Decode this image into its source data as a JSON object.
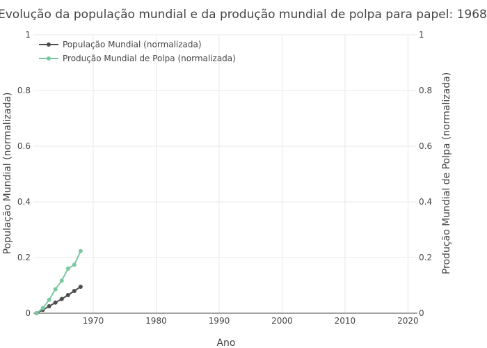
{
  "chart_data": {
    "type": "line",
    "title": "Evolução da população mundial e da produção mundial de polpa para papel: 1968",
    "xlabel": "Ano",
    "ylabel_left": "População Mundial (normalizada)",
    "ylabel_right": "Produção Mundial de Polpa (normalizada)",
    "xlim": [
      1960.5,
      2021.5
    ],
    "ylim": [
      0,
      1
    ],
    "x_ticks": [
      1970,
      1980,
      1990,
      2000,
      2010,
      2020
    ],
    "y_ticks": [
      0,
      0.2,
      0.4,
      0.6,
      0.8,
      1
    ],
    "y_tick_labels": [
      "0",
      "0.2",
      "0.4",
      "0.6",
      "0.8",
      "1"
    ],
    "grid": true,
    "legend_position": "top-left",
    "series": [
      {
        "name": "População Mundial (normalizada)",
        "axis": "left",
        "color": "#4d4d4d",
        "x": [
          1961,
          1962,
          1963,
          1964,
          1965,
          1966,
          1967,
          1968
        ],
        "y": [
          0.0,
          0.012,
          0.025,
          0.038,
          0.051,
          0.065,
          0.08,
          0.095
        ]
      },
      {
        "name": "Produção Mundial de Polpa (normalizada)",
        "axis": "right",
        "color": "#7ac8a0",
        "x": [
          1961,
          1962,
          1963,
          1964,
          1965,
          1966,
          1967,
          1968
        ],
        "y": [
          0.0,
          0.018,
          0.048,
          0.086,
          0.117,
          0.16,
          0.174,
          0.223
        ]
      }
    ]
  }
}
